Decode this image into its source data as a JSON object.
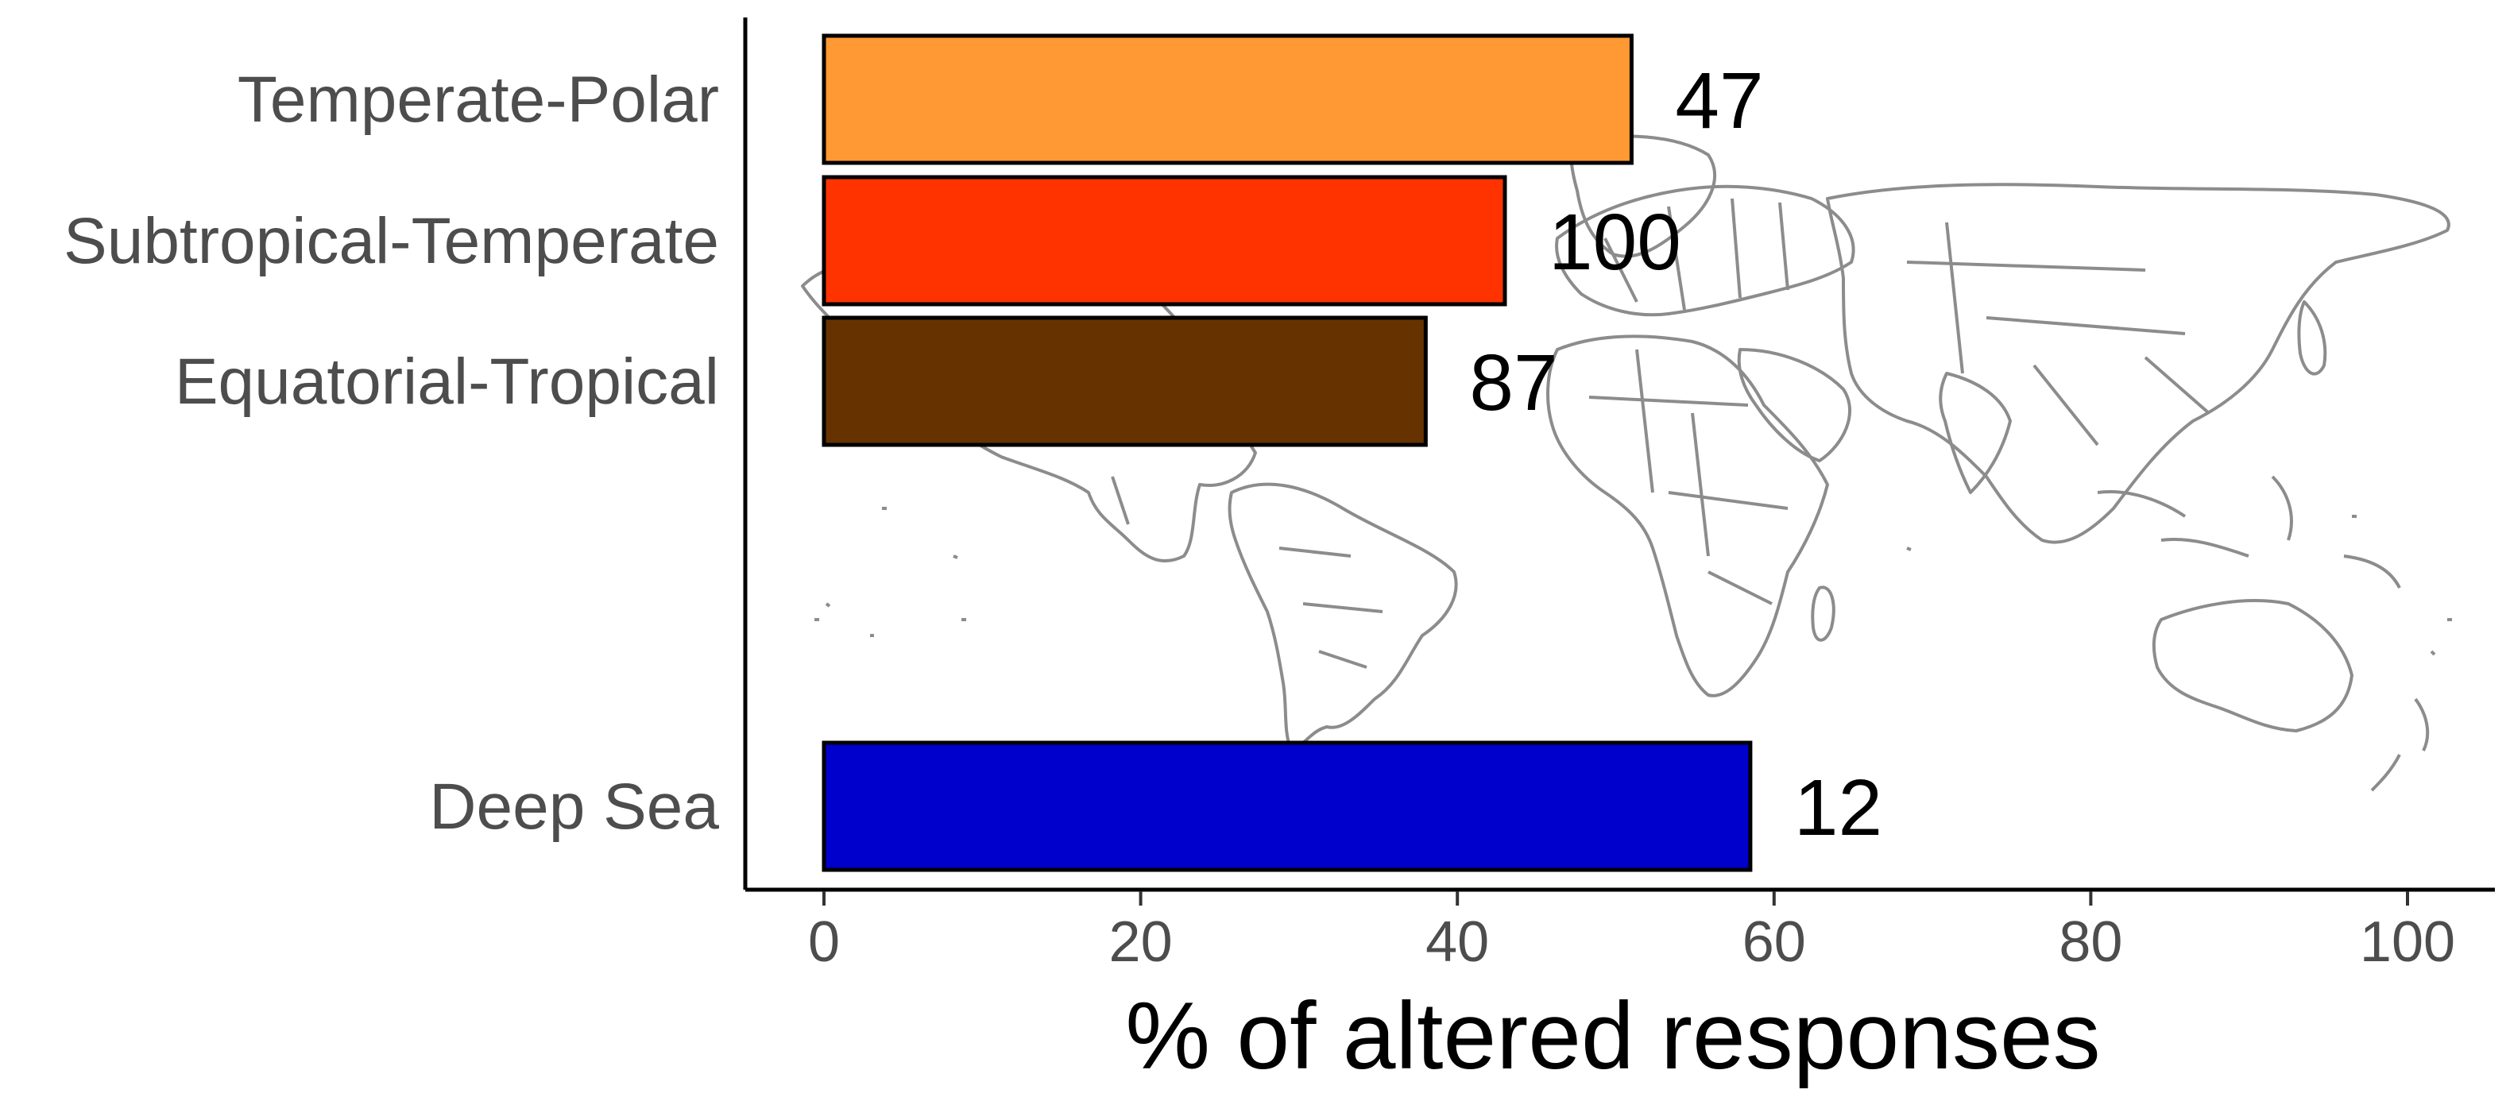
{
  "chart_data": {
    "type": "bar",
    "orientation": "horizontal",
    "categories": [
      "Temperate-Polar",
      "Subtropical-Temperate",
      "Equatorial-Tropical",
      "Deep Sea"
    ],
    "values": [
      51,
      43,
      38,
      58.5
    ],
    "counts": [
      "47",
      "100",
      "87",
      "12"
    ],
    "colors": [
      "#FF9933",
      "#FF3300",
      "#663300",
      "#0000CC"
    ],
    "xlabel": "% of altered responses",
    "xlim": [
      0,
      100
    ],
    "xticks": [
      "0",
      "20",
      "40",
      "60",
      "80",
      "100"
    ],
    "grid": false,
    "legend": "none",
    "background": "world-map"
  }
}
